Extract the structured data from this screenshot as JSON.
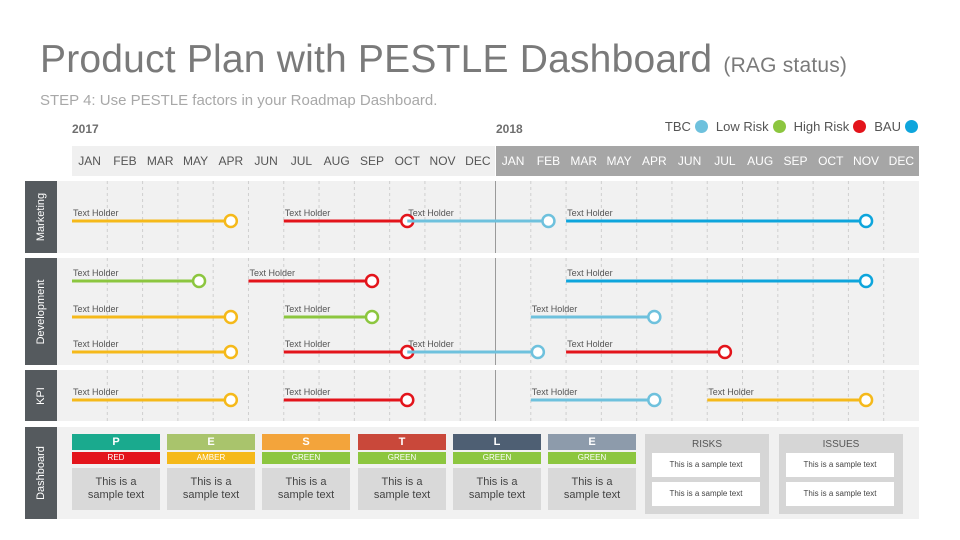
{
  "header": {
    "title": "Product Plan with PESTLE Dashboard",
    "title_suffix": "(RAG status)",
    "subtitle": "STEP 4: Use PESTLE factors in your Roadmap Dashboard."
  },
  "years": [
    "2017",
    "2018"
  ],
  "legend": [
    {
      "label": "TBC",
      "color": "#6ec1dd"
    },
    {
      "label": "Low Risk",
      "color": "#8cc63f"
    },
    {
      "label": "High Risk",
      "color": "#e3141b"
    },
    {
      "label": "BAU",
      "color": "#0ea5dc"
    }
  ],
  "months": [
    "JAN",
    "FEB",
    "MAR",
    "MAY",
    "APR",
    "JUN",
    "JUL",
    "AUG",
    "SEP",
    "OCT",
    "NOV",
    "DEC",
    "JAN",
    "FEB",
    "MAR",
    "MAY",
    "APR",
    "JUN",
    "JUL",
    "AUG",
    "SEP",
    "OCT",
    "NOV",
    "DEC"
  ],
  "colors": {
    "amber": "#f5b91a",
    "red": "#e3141b",
    "tbc": "#6ec1dd",
    "green": "#8cc63f",
    "bau": "#0ea5dc"
  },
  "rows": [
    {
      "label": "Marketing"
    },
    {
      "label": "Development"
    },
    {
      "label": "KPI"
    },
    {
      "label": "Dashboard"
    }
  ],
  "bars": [
    {
      "row": "Marketing",
      "lane": 0,
      "start": 0,
      "end": 4.5,
      "color": "amber",
      "label": "Text Holder"
    },
    {
      "row": "Marketing",
      "lane": 0,
      "start": 6,
      "end": 9.5,
      "color": "red",
      "label": "Text Holder"
    },
    {
      "row": "Marketing",
      "lane": 0,
      "start": 9.5,
      "end": 13.5,
      "color": "tbc",
      "label": "Text Holder"
    },
    {
      "row": "Marketing",
      "lane": 0,
      "start": 14,
      "end": 22.5,
      "color": "bau",
      "label": "Text Holder"
    },
    {
      "row": "Development",
      "lane": 0,
      "start": 0,
      "end": 3.6,
      "color": "green",
      "label": "Text Holder"
    },
    {
      "row": "Development",
      "lane": 0,
      "start": 5,
      "end": 8.5,
      "color": "red",
      "label": "Text Holder"
    },
    {
      "row": "Development",
      "lane": 0,
      "start": 14,
      "end": 22.5,
      "color": "bau",
      "label": "Text Holder"
    },
    {
      "row": "Development",
      "lane": 1,
      "start": 0,
      "end": 4.5,
      "color": "amber",
      "label": "Text Holder"
    },
    {
      "row": "Development",
      "lane": 1,
      "start": 6,
      "end": 8.5,
      "color": "green",
      "label": "Text Holder"
    },
    {
      "row": "Development",
      "lane": 1,
      "start": 13,
      "end": 16.5,
      "color": "tbc",
      "label": "Text Holder"
    },
    {
      "row": "Development",
      "lane": 2,
      "start": 0,
      "end": 4.5,
      "color": "amber",
      "label": "Text Holder"
    },
    {
      "row": "Development",
      "lane": 2,
      "start": 6,
      "end": 9.5,
      "color": "red",
      "label": "Text Holder"
    },
    {
      "row": "Development",
      "lane": 2,
      "start": 9.5,
      "end": 13.2,
      "color": "tbc",
      "label": "Text Holder"
    },
    {
      "row": "Development",
      "lane": 2,
      "start": 14,
      "end": 18.5,
      "color": "red",
      "label": "Text Holder"
    },
    {
      "row": "KPI",
      "lane": 0,
      "start": 0,
      "end": 4.5,
      "color": "amber",
      "label": "Text Holder"
    },
    {
      "row": "KPI",
      "lane": 0,
      "start": 6,
      "end": 9.5,
      "color": "red",
      "label": "Text Holder"
    },
    {
      "row": "KPI",
      "lane": 0,
      "start": 13,
      "end": 16.5,
      "color": "tbc",
      "label": "Text Holder"
    },
    {
      "row": "KPI",
      "lane": 0,
      "start": 18,
      "end": 22.5,
      "color": "amber",
      "label": "Text Holder"
    }
  ],
  "pestle": [
    {
      "letter": "P",
      "status": "RED",
      "text": "This is a sample text",
      "color": "#1aaa8e",
      "status_color": "#e3141b"
    },
    {
      "letter": "E",
      "status": "AMBER",
      "text": "This is a sample text",
      "color": "#a9c46c",
      "status_color": "#f5b91a"
    },
    {
      "letter": "S",
      "status": "GREEN",
      "text": "This is a sample text",
      "color": "#f3a43b",
      "status_color": "#8cc63f"
    },
    {
      "letter": "T",
      "status": "GREEN",
      "text": "This is a sample text",
      "color": "#c9483a",
      "status_color": "#8cc63f"
    },
    {
      "letter": "L",
      "status": "GREEN",
      "text": "This is a sample text",
      "color": "#4e5f73",
      "status_color": "#8cc63f"
    },
    {
      "letter": "E",
      "status": "GREEN",
      "text": "This is a sample text",
      "color": "#8d9bab",
      "status_color": "#8cc63f"
    }
  ],
  "risks": {
    "title": "RISKS",
    "items": [
      "This is a sample text",
      "This is a sample text"
    ]
  },
  "issues": {
    "title": "ISSUES",
    "items": [
      "This is a sample text",
      "This is a sample text"
    ]
  }
}
